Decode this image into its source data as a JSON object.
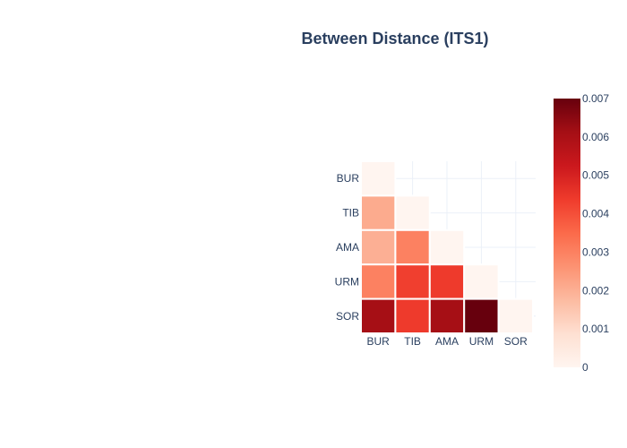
{
  "chart_data": {
    "type": "heatmap",
    "title": "Between Distance (ITS1)",
    "x_categories": [
      "BUR",
      "TIB",
      "AMA",
      "URM",
      "SOR"
    ],
    "y_categories": [
      "BUR",
      "TIB",
      "AMA",
      "URM",
      "SOR"
    ],
    "matrix": [
      [
        0.0,
        null,
        null,
        null,
        null
      ],
      [
        0.0021,
        0.0,
        null,
        null,
        null
      ],
      [
        0.002,
        0.003,
        0.0,
        null,
        null
      ],
      [
        0.003,
        0.0043,
        0.0044,
        0.0,
        null
      ],
      [
        0.0061,
        0.0044,
        0.0061,
        0.0073,
        0.0
      ]
    ],
    "colorscale": "Reds",
    "colorbar": {
      "min": 0,
      "max": 0.007,
      "ticks": [
        "0",
        "0.001",
        "0.002",
        "0.003",
        "0.004",
        "0.005",
        "0.006",
        "0.007"
      ]
    },
    "grid": true
  }
}
